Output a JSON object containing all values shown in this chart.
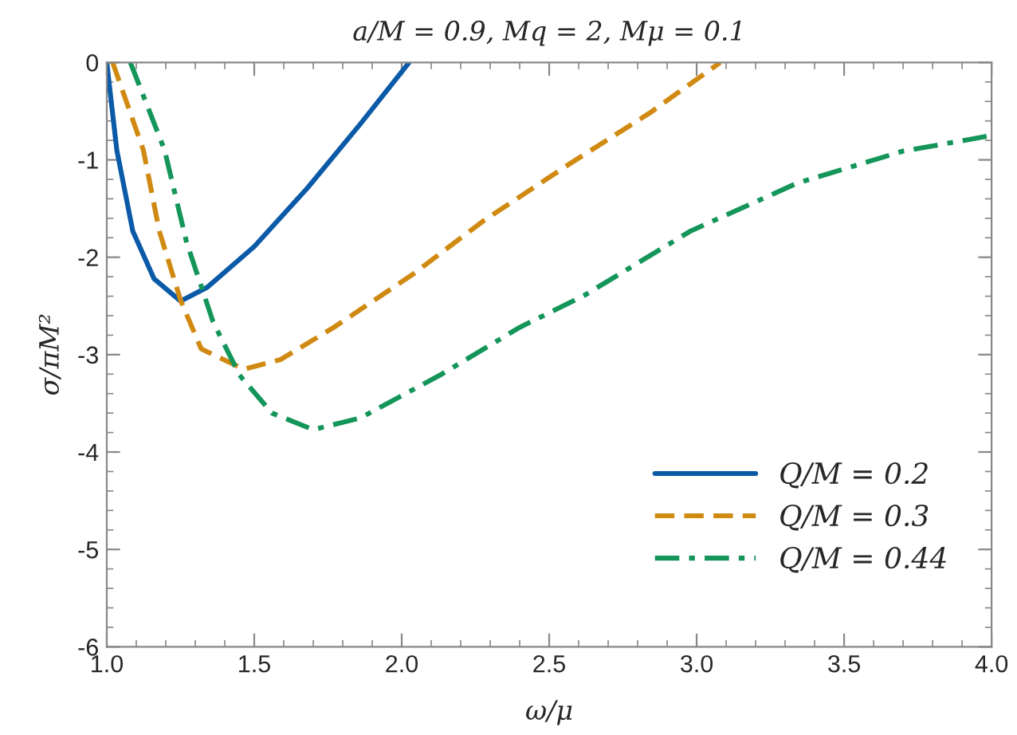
{
  "chart_data": {
    "type": "line",
    "title": "a/M = 0.9, Mq = 2, Mμ = 0.1",
    "xlabel": "ω/μ",
    "ylabel": "σ/πM²",
    "xlim": [
      1.0,
      4.0
    ],
    "xticks": [
      {
        "value": 1.0,
        "label": "1.0"
      },
      {
        "value": 1.5,
        "label": "1.5"
      },
      {
        "value": 2.0,
        "label": "2.0"
      },
      {
        "value": 2.5,
        "label": "2.5"
      },
      {
        "value": 3.0,
        "label": "3.0"
      },
      {
        "value": 3.5,
        "label": "3.5"
      },
      {
        "value": 4.0,
        "label": "4.0"
      }
    ],
    "ylim": [
      -6,
      0
    ],
    "yticks": [
      -6,
      -5,
      -4,
      -3,
      -2,
      -1,
      0
    ],
    "grid": false,
    "legend": "bottom right",
    "series": [
      {
        "name": "Q/M = 0.2",
        "color": "#0b5aa8",
        "line_style": "solid",
        "x": [
          1.0,
          1.034,
          1.088,
          1.16,
          1.25,
          1.34,
          1.5,
          1.68,
          1.86,
          2.025
        ],
        "values": [
          0,
          -0.9,
          -1.73,
          -2.22,
          -2.45,
          -2.31,
          -1.89,
          -1.29,
          -0.63,
          0
        ]
      },
      {
        "name": "Q/M = 0.3",
        "color": "#d08a12",
        "line_style": "dashed",
        "x": [
          1.02,
          1.124,
          1.178,
          1.25,
          1.32,
          1.465,
          1.59,
          1.77,
          2.04,
          2.28,
          2.57,
          2.84,
          3.08
        ],
        "values": [
          0,
          -0.9,
          -1.73,
          -2.44,
          -2.94,
          -3.15,
          -3.05,
          -2.72,
          -2.17,
          -1.62,
          -1.04,
          -0.52,
          0
        ]
      },
      {
        "name": "Q/M = 0.44",
        "color": "#14955a",
        "line_style": "dashdot",
        "x": [
          1.08,
          1.196,
          1.27,
          1.36,
          1.45,
          1.56,
          1.7,
          1.86,
          2.13,
          2.4,
          2.62,
          2.98,
          3.34,
          3.7,
          4.0
        ],
        "values": [
          0,
          -0.9,
          -1.84,
          -2.66,
          -3.21,
          -3.6,
          -3.77,
          -3.65,
          -3.21,
          -2.72,
          -2.39,
          -1.73,
          -1.24,
          -0.91,
          -0.75
        ]
      }
    ]
  }
}
